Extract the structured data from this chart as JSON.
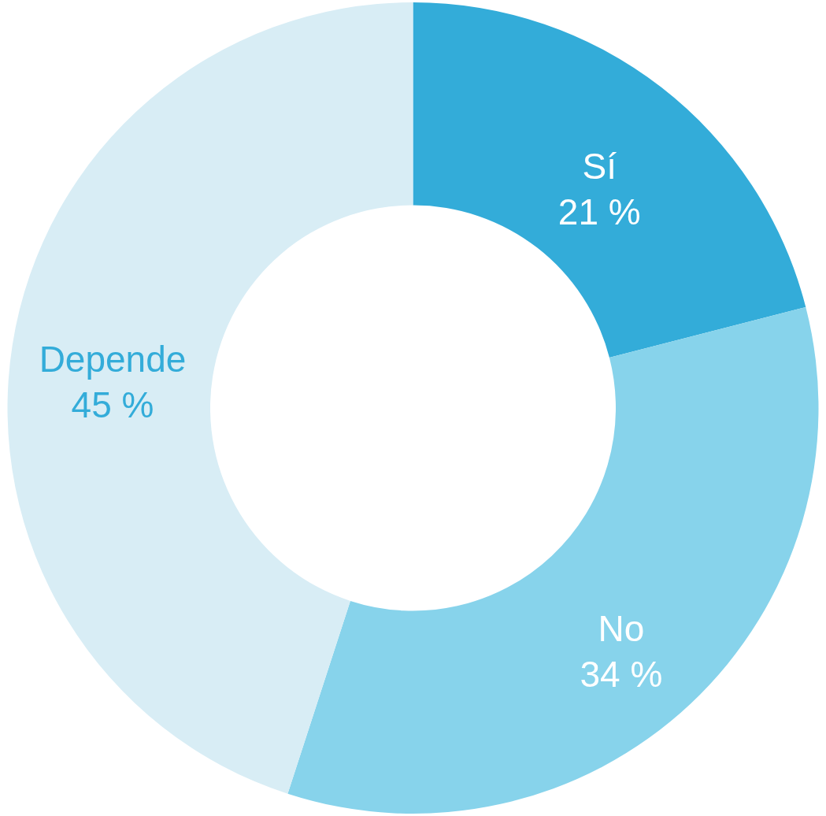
{
  "chart_data": {
    "type": "donut",
    "categories": [
      "Sí",
      "No",
      "Depende"
    ],
    "values": [
      21,
      34,
      45
    ],
    "value_labels": [
      "21 %",
      "34 %",
      "45 %"
    ],
    "colors": [
      "#33acd9",
      "#87d3eb",
      "#d8edf5"
    ]
  }
}
